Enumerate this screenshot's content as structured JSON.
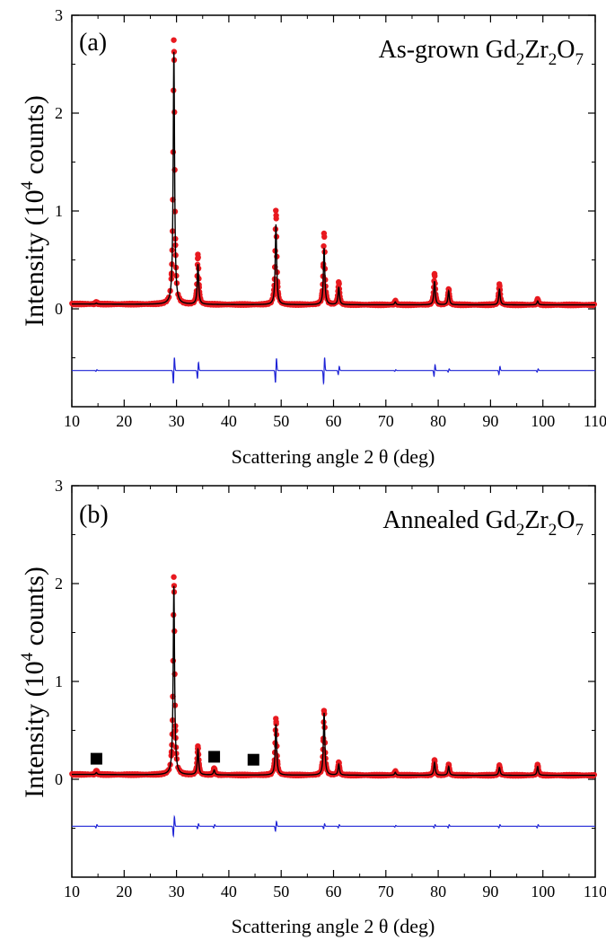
{
  "chart_data": [
    {
      "type": "line",
      "panel_label": "(a)",
      "sample_label": {
        "prefix": "As-grown Gd",
        "s1": "2",
        "mid1": "Zr",
        "s2": "2",
        "mid2": "O",
        "s3": "7"
      },
      "xlabel": "Scattering angle 2 θ (deg)",
      "ylabel": {
        "prefix": "Intensity (10",
        "sup": "4",
        "suffix": " counts)"
      },
      "xlim": [
        10,
        110
      ],
      "ylim": [
        -1,
        3
      ],
      "xticks": [
        "10",
        "20",
        "30",
        "40",
        "50",
        "60",
        "70",
        "80",
        "90",
        "100",
        "110"
      ],
      "yticks": [
        "0",
        "1",
        "2",
        "3"
      ],
      "background": 0.04,
      "difference_offset": -0.63,
      "peaks": [
        {
          "x": 14.7,
          "obs": 0.06,
          "calc": 0.05
        },
        {
          "x": 29.5,
          "obs": 2.78,
          "calc": 2.62
        },
        {
          "x": 34.1,
          "obs": 0.55,
          "calc": 0.45
        },
        {
          "x": 49.0,
          "obs": 1.01,
          "calc": 0.86
        },
        {
          "x": 58.2,
          "obs": 0.78,
          "calc": 0.62
        },
        {
          "x": 61.0,
          "obs": 0.27,
          "calc": 0.22
        },
        {
          "x": 71.8,
          "obs": 0.08,
          "calc": 0.07
        },
        {
          "x": 79.3,
          "obs": 0.35,
          "calc": 0.28
        },
        {
          "x": 82.0,
          "obs": 0.2,
          "calc": 0.18
        },
        {
          "x": 91.7,
          "obs": 0.25,
          "calc": 0.2
        },
        {
          "x": 99.0,
          "obs": 0.1,
          "calc": 0.08
        }
      ],
      "impurity_markers": []
    },
    {
      "type": "line",
      "panel_label": "(b)",
      "sample_label": {
        "prefix": "Annealed Gd",
        "s1": "2",
        "mid1": "Zr",
        "s2": "2",
        "mid2": "O",
        "s3": "7"
      },
      "xlabel": "Scattering angle 2 θ (deg)",
      "ylabel": {
        "prefix": "Intensity (10",
        "sup": "4",
        "suffix": " counts)"
      },
      "xlim": [
        10,
        110
      ],
      "ylim": [
        -1,
        3
      ],
      "xticks": [
        "10",
        "20",
        "30",
        "40",
        "50",
        "60",
        "70",
        "80",
        "90",
        "100",
        "110"
      ],
      "yticks": [
        "0",
        "1",
        "2",
        "3"
      ],
      "background": 0.04,
      "difference_offset": -0.48,
      "peaks": [
        {
          "x": 14.7,
          "obs": 0.08,
          "calc": 0.06
        },
        {
          "x": 29.5,
          "obs": 2.09,
          "calc": 1.97
        },
        {
          "x": 34.1,
          "obs": 0.33,
          "calc": 0.3
        },
        {
          "x": 37.2,
          "obs": 0.11,
          "calc": 0.09
        },
        {
          "x": 49.0,
          "obs": 0.62,
          "calc": 0.56
        },
        {
          "x": 58.2,
          "obs": 0.71,
          "calc": 0.68
        },
        {
          "x": 61.0,
          "obs": 0.17,
          "calc": 0.15
        },
        {
          "x": 71.8,
          "obs": 0.08,
          "calc": 0.07
        },
        {
          "x": 79.3,
          "obs": 0.19,
          "calc": 0.17
        },
        {
          "x": 82.0,
          "obs": 0.15,
          "calc": 0.13
        },
        {
          "x": 91.7,
          "obs": 0.14,
          "calc": 0.12
        },
        {
          "x": 99.0,
          "obs": 0.15,
          "calc": 0.13
        }
      ],
      "impurity_markers": [
        {
          "x": 14.7,
          "y": 0.21
        },
        {
          "x": 37.2,
          "y": 0.23
        },
        {
          "x": 44.7,
          "y": 0.2
        }
      ]
    }
  ],
  "colors": {
    "observed": "#e8191f",
    "calculated": "#000000",
    "difference": "#1f24d6",
    "marker": "#000000"
  }
}
